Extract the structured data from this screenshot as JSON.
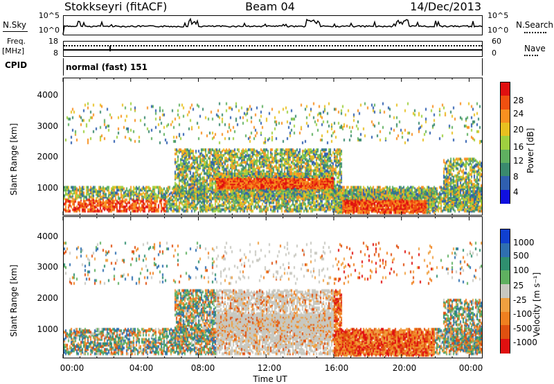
{
  "header": {
    "station": "Stokkseyri (fitACF)",
    "beam": "Beam 04",
    "date": "14/Dec/2013"
  },
  "status_panel": {
    "nsky_label": "N.Sky",
    "nsky_ticks": [
      "10^5",
      "10^0"
    ],
    "nsky_right_ticks": [
      "10^5",
      "10^0"
    ],
    "nsearch_label": "N.Search",
    "freq_label_line1": "Freq.",
    "freq_label_line2": "[MHz]",
    "freq_ticks": [
      "18",
      "8"
    ],
    "nave_ticks": [
      "60",
      "0"
    ],
    "nave_label": "Nave",
    "cpid_label": "CPID",
    "cpid_value": "normal (fast) 151"
  },
  "colors": {
    "power_scale": [
      "#1010e0",
      "#2f5fb0",
      "#3a8a6e",
      "#5fb060",
      "#9fd040",
      "#e8c020",
      "#f89020",
      "#f05010",
      "#e01010"
    ],
    "velocity_scale": [
      "#1040d0",
      "#2f6fb0",
      "#2f8f6f",
      "#5fb060",
      "#c8c8c0",
      "#f0a040",
      "#f08020",
      "#e05010",
      "#e01010"
    ]
  },
  "chart_data": [
    {
      "type": "heatmap",
      "name": "power",
      "ylabel": "Slant Range [km]",
      "xlabel": "",
      "yticks": [
        "4000",
        "3000",
        "2000",
        "1000"
      ],
      "ylim": [
        200,
        4600
      ],
      "xticks": [],
      "colorbar_label": "Power [dB]",
      "colorbar_ticks": [
        "28",
        "24",
        "20",
        "16",
        "12",
        "8",
        "4"
      ]
    },
    {
      "type": "heatmap",
      "name": "velocity",
      "ylabel": "Slant Range [km]",
      "xlabel": "Time UT",
      "yticks": [
        "4000",
        "3000",
        "2000",
        "1000"
      ],
      "ylim": [
        200,
        4600
      ],
      "xticks": [
        "00:00",
        "04:00",
        "08:00",
        "12:00",
        "16:00",
        "20:00",
        "00:00"
      ],
      "colorbar_label": "Velocity [m s⁻¹]",
      "colorbar_ticks": [
        "1000",
        "500",
        "100",
        "25",
        "-25",
        "-100",
        "-500",
        "-1000"
      ]
    }
  ]
}
